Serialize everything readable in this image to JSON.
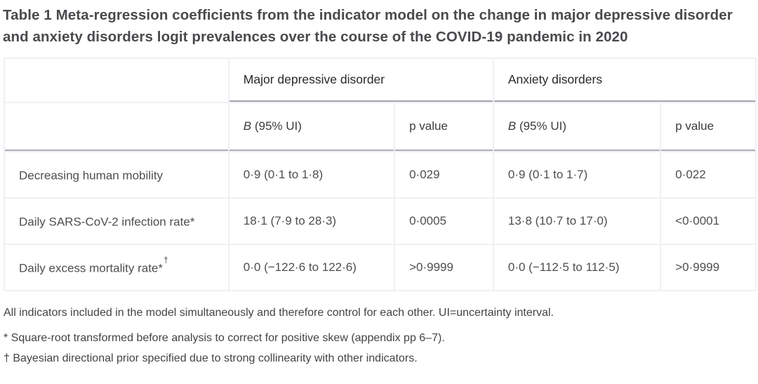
{
  "title": "Table 1  Meta-regression coefficients from the indicator model on the change in major depressive disorder and anxiety disorders logit prevalences over the course of the COVID-19 pandemic in 2020",
  "table": {
    "group_headers": {
      "mdd": "Major depressive disorder",
      "anxiety": "Anxiety disorders"
    },
    "sub_headers": {
      "b_italic": "B",
      "b_rest": " (95% UI)",
      "p": "p value"
    },
    "rows": [
      {
        "label": "Decreasing human mobility",
        "label_sup": "",
        "mdd_b": "0·9 (0·1 to 1·8)",
        "mdd_p": "0·029",
        "anx_b": "0·9 (0·1 to 1·7)",
        "anx_p": "0·022"
      },
      {
        "label": "Daily SARS-CoV-2 infection rate*",
        "label_sup": "",
        "mdd_b": "18·1 (7·9 to 28·3)",
        "mdd_p": "0·0005",
        "anx_b": "13·8 (10·7 to 17·0)",
        "anx_p": "<0·0001"
      },
      {
        "label": "Daily excess mortality rate*",
        "label_sup": "†",
        "mdd_b": "0·0 (−122·6 to 122·6)",
        "mdd_p": ">0·9999",
        "anx_b": "0·0 (−112·5 to 112·5)",
        "anx_p": ">0·9999"
      }
    ]
  },
  "footnotes": {
    "general": "All indicators included in the model simultaneously and therefore control for each other. UI=uncertainty interval.",
    "star": "* Square-root transformed before analysis to correct for positive skew (appendix pp 6–7).",
    "dagger": "† Bayesian directional prior specified due to strong collinearity with other indicators."
  },
  "colors": {
    "rule_group": "#a4a4b0",
    "rule_subheader": "#aeaebc",
    "gutter": "#eff0f3",
    "title_text": "#4a4a4e",
    "body_text": "#4e4e52"
  }
}
